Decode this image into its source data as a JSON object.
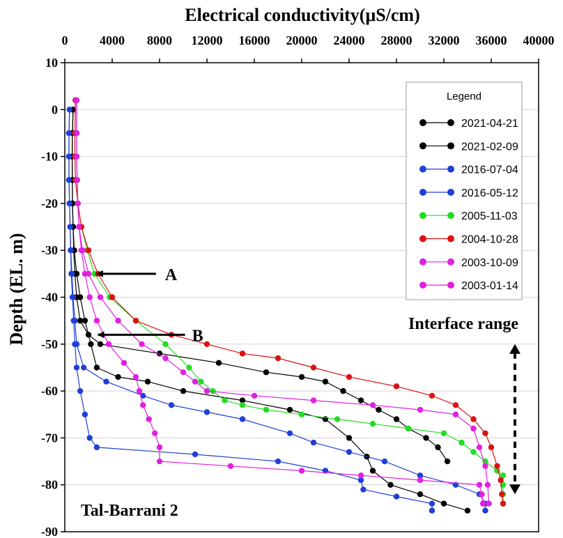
{
  "chart_data": {
    "type": "line",
    "title": "",
    "xlabel": "Electrical conductivity(μS/cm)",
    "ylabel": "Depth (EL. m)",
    "x_axis_position": "top",
    "xlim": [
      0,
      40000
    ],
    "ylim": [
      -90,
      10
    ],
    "xticks": [
      0,
      4000,
      8000,
      12000,
      16000,
      20000,
      24000,
      28000,
      32000,
      36000,
      40000
    ],
    "yticks": [
      10,
      0,
      -10,
      -20,
      -30,
      -40,
      -50,
      -60,
      -70,
      -80,
      -90
    ],
    "grid": "horizontal",
    "legend": {
      "title": "Legend",
      "position": "top-right"
    },
    "site_label": "Tal-Barrani 2",
    "annotations": {
      "A": {
        "text": "A",
        "x": 2700,
        "depth": -35
      },
      "B": {
        "text": "B",
        "x": 2800,
        "depth": -48
      },
      "interface": {
        "text": "Interface range",
        "x": 38000,
        "depth_top": -50,
        "depth_bottom": -82
      }
    },
    "series": [
      {
        "name": "2021-04-21",
        "color": "#000000",
        "points": [
          [
            700,
            0
          ],
          [
            650,
            -5
          ],
          [
            620,
            -10
          ],
          [
            640,
            -15
          ],
          [
            650,
            -20
          ],
          [
            700,
            -25
          ],
          [
            750,
            -30
          ],
          [
            850,
            -35
          ],
          [
            1000,
            -40
          ],
          [
            1300,
            -45
          ],
          [
            2000,
            -48
          ],
          [
            3000,
            -50
          ],
          [
            8000,
            -52
          ],
          [
            13000,
            -54
          ],
          [
            17000,
            -56
          ],
          [
            20000,
            -57
          ],
          [
            22000,
            -58
          ],
          [
            23500,
            -60
          ],
          [
            25000,
            -62
          ],
          [
            26500,
            -64
          ],
          [
            28000,
            -66
          ],
          [
            29000,
            -68
          ],
          [
            30500,
            -70
          ],
          [
            31500,
            -72
          ],
          [
            32300,
            -75
          ]
        ]
      },
      {
        "name": "2021-02-09",
        "color": "#000000",
        "points": [
          [
            700,
            0
          ],
          [
            650,
            -5
          ],
          [
            620,
            -10
          ],
          [
            640,
            -15
          ],
          [
            650,
            -20
          ],
          [
            700,
            -25
          ],
          [
            800,
            -30
          ],
          [
            1000,
            -35
          ],
          [
            1300,
            -40
          ],
          [
            1700,
            -45
          ],
          [
            2200,
            -50
          ],
          [
            2700,
            -55
          ],
          [
            4500,
            -57
          ],
          [
            7000,
            -58
          ],
          [
            10000,
            -60
          ],
          [
            15000,
            -62
          ],
          [
            19000,
            -64
          ],
          [
            22000,
            -66
          ],
          [
            24000,
            -70
          ],
          [
            25500,
            -74
          ],
          [
            26000,
            -77
          ],
          [
            27500,
            -80
          ],
          [
            30000,
            -82
          ],
          [
            32000,
            -84
          ],
          [
            34000,
            -85.5
          ]
        ]
      },
      {
        "name": "2016-07-04",
        "color": "#1f3fd6",
        "points": [
          [
            400,
            0
          ],
          [
            350,
            -5
          ],
          [
            350,
            -10
          ],
          [
            350,
            -15
          ],
          [
            400,
            -20
          ],
          [
            450,
            -25
          ],
          [
            500,
            -30
          ],
          [
            550,
            -35
          ],
          [
            650,
            -40
          ],
          [
            750,
            -45
          ],
          [
            850,
            -50
          ],
          [
            1000,
            -55
          ],
          [
            1300,
            -60
          ],
          [
            1700,
            -65
          ],
          [
            2100,
            -70
          ],
          [
            2700,
            -72
          ],
          [
            11000,
            -73.5
          ],
          [
            18000,
            -75
          ],
          [
            22000,
            -77
          ],
          [
            25000,
            -79
          ],
          [
            25200,
            -81
          ],
          [
            28000,
            -82.5
          ],
          [
            31000,
            -84
          ],
          [
            31000,
            -85.5
          ]
        ]
      },
      {
        "name": "2016-05-12",
        "color": "#1f3fd6",
        "points": [
          [
            400,
            0
          ],
          [
            350,
            -5
          ],
          [
            350,
            -10
          ],
          [
            350,
            -15
          ],
          [
            400,
            -20
          ],
          [
            450,
            -25
          ],
          [
            500,
            -30
          ],
          [
            600,
            -35
          ],
          [
            700,
            -40
          ],
          [
            850,
            -45
          ],
          [
            1000,
            -50
          ],
          [
            1600,
            -55
          ],
          [
            3500,
            -58
          ],
          [
            6600,
            -61
          ],
          [
            9000,
            -63
          ],
          [
            12000,
            -64.5
          ],
          [
            15000,
            -66
          ],
          [
            19000,
            -69
          ],
          [
            21000,
            -71
          ],
          [
            24000,
            -73
          ],
          [
            27000,
            -75
          ],
          [
            30000,
            -78
          ],
          [
            33000,
            -80
          ],
          [
            35000,
            -82
          ],
          [
            35500,
            -84
          ],
          [
            35500,
            -85.5
          ]
        ]
      },
      {
        "name": "2005-11-03",
        "color": "#22dd22",
        "points": [
          [
            900,
            2
          ],
          [
            850,
            -5
          ],
          [
            850,
            -10
          ],
          [
            900,
            -15
          ],
          [
            1100,
            -20
          ],
          [
            1400,
            -25
          ],
          [
            1900,
            -30
          ],
          [
            2500,
            -35
          ],
          [
            3800,
            -40
          ],
          [
            6000,
            -45
          ],
          [
            8500,
            -50
          ],
          [
            10500,
            -55
          ],
          [
            11500,
            -58
          ],
          [
            12500,
            -60
          ],
          [
            13500,
            -62
          ],
          [
            15000,
            -63
          ],
          [
            17000,
            -64
          ],
          [
            20000,
            -65
          ],
          [
            23000,
            -66
          ],
          [
            26000,
            -67
          ],
          [
            29000,
            -68
          ],
          [
            32000,
            -69
          ],
          [
            33500,
            -71
          ],
          [
            34500,
            -73
          ],
          [
            35500,
            -75
          ],
          [
            36500,
            -77
          ],
          [
            37000,
            -78
          ],
          [
            37000,
            -80
          ],
          [
            37000,
            -82
          ],
          [
            37000,
            -84
          ]
        ]
      },
      {
        "name": "2004-10-28",
        "color": "#dd1111",
        "points": [
          [
            900,
            2
          ],
          [
            850,
            -5
          ],
          [
            850,
            -10
          ],
          [
            900,
            -15
          ],
          [
            1100,
            -20
          ],
          [
            1400,
            -25
          ],
          [
            2000,
            -30
          ],
          [
            2800,
            -35
          ],
          [
            4000,
            -40
          ],
          [
            6000,
            -45
          ],
          [
            9000,
            -48
          ],
          [
            12000,
            -50
          ],
          [
            15000,
            -52
          ],
          [
            18000,
            -53
          ],
          [
            21000,
            -55
          ],
          [
            24000,
            -57
          ],
          [
            28000,
            -59
          ],
          [
            31000,
            -61
          ],
          [
            33000,
            -63
          ],
          [
            34500,
            -66
          ],
          [
            35500,
            -69
          ],
          [
            36000,
            -72
          ],
          [
            36500,
            -76
          ],
          [
            36800,
            -79
          ],
          [
            36900,
            -82
          ],
          [
            37000,
            -84
          ]
        ]
      },
      {
        "name": "2003-10-09",
        "color": "#e020e0",
        "points": [
          [
            1000,
            2
          ],
          [
            1000,
            -5
          ],
          [
            1000,
            -10
          ],
          [
            1050,
            -15
          ],
          [
            1100,
            -20
          ],
          [
            1200,
            -25
          ],
          [
            1400,
            -30
          ],
          [
            1700,
            -35
          ],
          [
            2100,
            -40
          ],
          [
            2700,
            -45
          ],
          [
            3700,
            -50
          ],
          [
            5000,
            -54
          ],
          [
            6000,
            -57
          ],
          [
            6300,
            -60
          ],
          [
            6600,
            -63
          ],
          [
            7100,
            -66
          ],
          [
            7600,
            -69
          ],
          [
            8000,
            -72
          ],
          [
            8000,
            -75
          ],
          [
            14000,
            -76
          ],
          [
            20000,
            -77
          ],
          [
            25000,
            -78
          ],
          [
            30000,
            -79
          ],
          [
            35000,
            -80
          ],
          [
            35200,
            -82
          ],
          [
            35300,
            -84
          ]
        ]
      },
      {
        "name": "2003-01-14",
        "color": "#e020e0",
        "points": [
          [
            1000,
            2
          ],
          [
            1000,
            -5
          ],
          [
            1000,
            -10
          ],
          [
            1050,
            -15
          ],
          [
            1100,
            -20
          ],
          [
            1200,
            -25
          ],
          [
            1500,
            -30
          ],
          [
            2000,
            -35
          ],
          [
            3000,
            -40
          ],
          [
            4500,
            -45
          ],
          [
            6500,
            -50
          ],
          [
            8500,
            -53
          ],
          [
            10000,
            -56
          ],
          [
            11000,
            -58
          ],
          [
            12000,
            -60
          ],
          [
            16000,
            -61
          ],
          [
            21000,
            -62
          ],
          [
            26000,
            -63
          ],
          [
            30000,
            -64
          ],
          [
            33000,
            -65
          ],
          [
            34500,
            -68
          ],
          [
            35000,
            -72
          ],
          [
            35500,
            -76
          ],
          [
            35700,
            -80
          ],
          [
            35800,
            -84
          ]
        ]
      }
    ]
  }
}
